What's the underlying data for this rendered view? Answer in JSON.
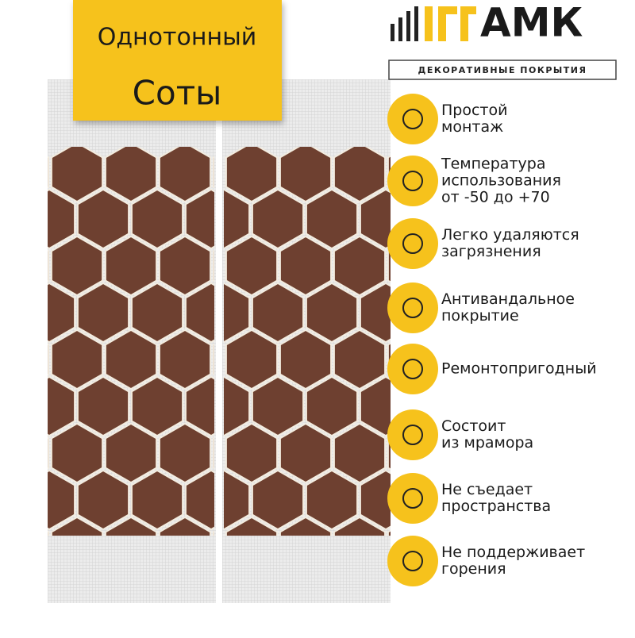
{
  "banner": {
    "line1": "Однотонный",
    "line2": "Соты"
  },
  "brand": {
    "name": "АМК",
    "tagline": "ДЕКОРАТИВНЫЕ ПОКРЫТИЯ"
  },
  "features": [
    {
      "lines": [
        "Простой",
        "монтаж"
      ]
    },
    {
      "lines": [
        "Температура",
        "использования",
        "от -50 до +70"
      ]
    },
    {
      "lines": [
        "Легко удаляются",
        "загрязнения"
      ]
    },
    {
      "lines": [
        "Антивандальное",
        "покрытие"
      ]
    },
    {
      "lines": [
        "Ремонтопригодный"
      ]
    },
    {
      "lines": [
        "Состоит",
        "из мрамора"
      ]
    },
    {
      "lines": [
        "Не съедает",
        "пространства"
      ]
    },
    {
      "lines": [
        "Не поддерживает",
        "горения"
      ]
    }
  ]
}
